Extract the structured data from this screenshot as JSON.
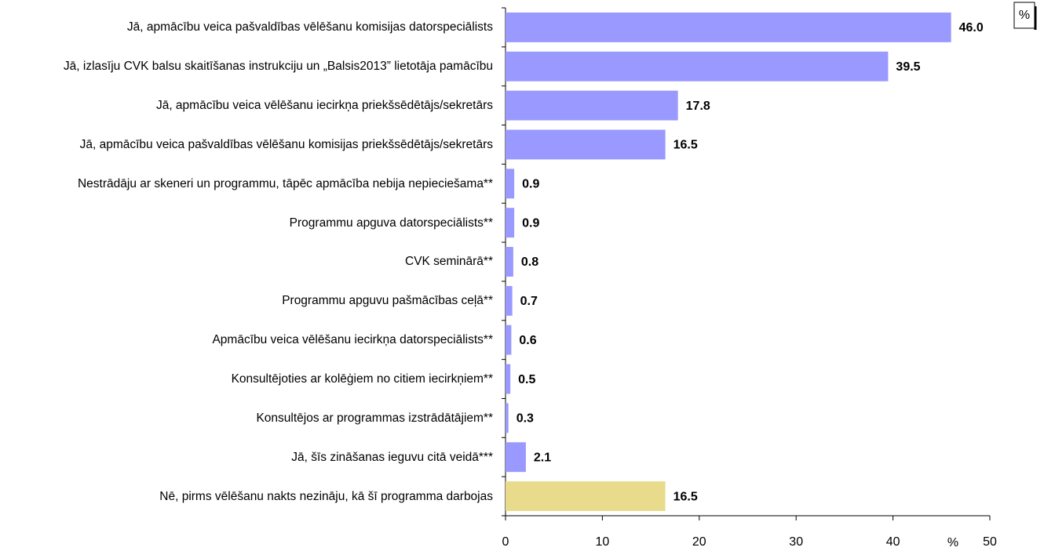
{
  "chart_data": {
    "type": "bar",
    "orientation": "horizontal",
    "categories": [
      "Jā, apmācību veica pašvaldības vēlēšanu komisijas datorspeciālists",
      "Jā, izlasīju CVK balsu skaitīšanas instrukciju un „Balsis2013” lietotāja pamācību",
      "Jā, apmācību veica vēlēšanu iecirkņa priekšsēdētājs/sekretārs",
      "Jā, apmācību veica pašvaldības vēlēšanu komisijas priekšsēdētājs/sekretārs",
      "Nestrādāju ar skeneri un programmu, tāpēc apmācība nebija nepieciešama**",
      "Programmu apguva datorspeciālists**",
      "CVK seminārā**",
      "Programmu apguvu pašmācības ceļā**",
      "Apmācību veica vēlēšanu iecirkņa datorspeciālists**",
      "Konsultējoties ar kolēģiem no citiem iecirkņiem**",
      "Konsultējos ar programmas izstrādātājiem**",
      "Jā, šīs zināšanas ieguvu citā veidā***",
      "Nē, pirms vēlēšanu nakts nezināju, kā šī programma darbojas"
    ],
    "values": [
      46.0,
      39.5,
      17.8,
      16.5,
      0.9,
      0.9,
      0.8,
      0.7,
      0.6,
      0.5,
      0.3,
      2.1,
      16.5
    ],
    "value_labels": [
      "46.0",
      "39.5",
      "17.8",
      "16.5",
      "0.9",
      "0.9",
      "0.8",
      "0.7",
      "0.6",
      "0.5",
      "0.3",
      "2.1",
      "16.5"
    ],
    "colors": [
      "#9999ff",
      "#9999ff",
      "#9999ff",
      "#9999ff",
      "#9999ff",
      "#9999ff",
      "#9999ff",
      "#9999ff",
      "#9999ff",
      "#9999ff",
      "#9999ff",
      "#9999ff",
      "#e8dc8c"
    ],
    "xlim": [
      0,
      50
    ],
    "xticks": [
      0,
      10,
      20,
      30,
      40,
      50
    ],
    "xlabel": "%",
    "unit_box": "%"
  }
}
